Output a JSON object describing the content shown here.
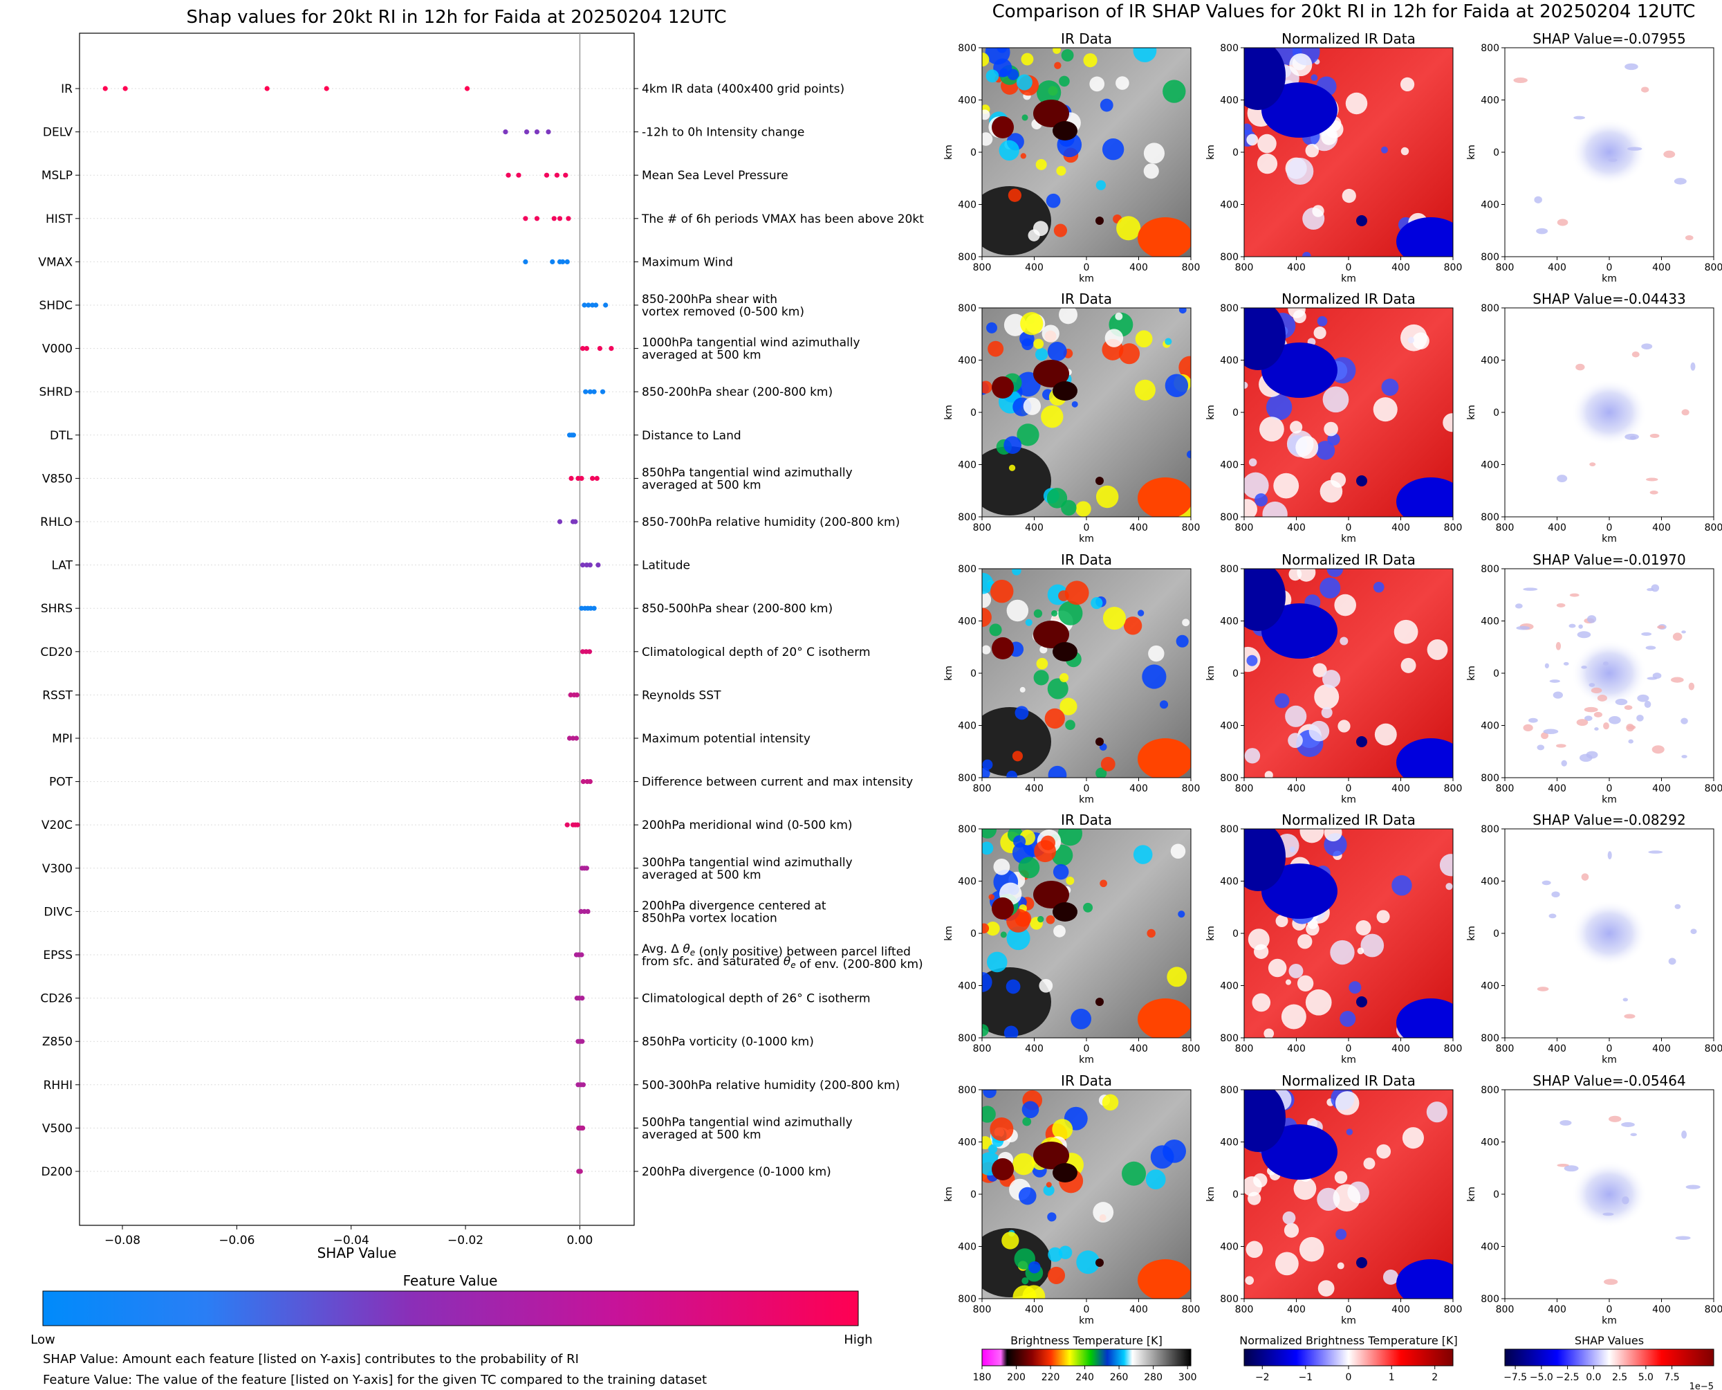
{
  "colors": {
    "low": "#008bfb",
    "mid": "#8a2fb8",
    "high": "#ff0052",
    "zero_line": "#999999",
    "grid": "#dddddd"
  },
  "chart_data": [
    {
      "type": "scatter",
      "subtype": "shap-beeswarm",
      "title": "Shap values for 20kt RI in 12h for Faida at 20250204 12UTC",
      "xlabel": "SHAP Value",
      "xlim": [
        -0.0875,
        0.0095
      ],
      "xticks": [
        -0.08,
        -0.06,
        -0.04,
        -0.02,
        0.0
      ],
      "xtick_labels": [
        "−0.08",
        "−0.06",
        "−0.04",
        "−0.02",
        "0.00"
      ],
      "colorbar": {
        "title": "Feature Value",
        "low_label": "Low",
        "high_label": "High"
      },
      "notes": [
        "SHAP Value: Amount each feature [listed on Y-axis] contributes to the probability of RI",
        "Feature Value: The value of the feature [listed on Y-axis] for the given TC compared to the training dataset"
      ],
      "features": [
        {
          "name": "IR",
          "desc": [
            "4km IR data (400x400 grid points)"
          ],
          "values": [
            -0.083,
            -0.0795,
            -0.0547,
            -0.0443,
            -0.0197
          ],
          "level": 1.0
        },
        {
          "name": "DELV",
          "desc": [
            "-12h to 0h Intensity change"
          ],
          "values": [
            -0.013,
            -0.0093,
            -0.0075,
            -0.0055
          ],
          "level": 0.45
        },
        {
          "name": "MSLP",
          "desc": [
            "Mean Sea Level Pressure"
          ],
          "values": [
            -0.0125,
            -0.0107,
            -0.0058,
            -0.004,
            -0.0025
          ],
          "level": 0.95
        },
        {
          "name": "HIST",
          "desc": [
            "The # of 6h periods VMAX has been above 20kt"
          ],
          "values": [
            -0.0095,
            -0.0075,
            -0.0045,
            -0.0035,
            -0.002
          ],
          "level": 0.95
        },
        {
          "name": "VMAX",
          "desc": [
            "Maximum Wind"
          ],
          "values": [
            -0.0095,
            -0.0048,
            -0.0035,
            -0.003,
            -0.0022
          ],
          "level": 0.05
        },
        {
          "name": "SHDC",
          "desc": [
            "850-200hPa shear with",
            "vortex removed (0-500 km)"
          ],
          "values": [
            0.0008,
            0.0015,
            0.0022,
            0.0028,
            0.0045
          ],
          "level": 0.05
        },
        {
          "name": "V000",
          "desc": [
            "1000hPa tangential wind azimuthally",
            "averaged at 500 km"
          ],
          "values": [
            0.0005,
            0.0012,
            0.0035,
            0.0055
          ],
          "level": 0.95
        },
        {
          "name": "SHRD",
          "desc": [
            "850-200hPa shear (200-800 km)"
          ],
          "values": [
            0.001,
            0.0018,
            0.0025,
            0.004
          ],
          "level": 0.05
        },
        {
          "name": "DTL",
          "desc": [
            "Distance to Land"
          ],
          "values": [
            -0.0018,
            -0.0014,
            -0.0011
          ],
          "level": 0.05
        },
        {
          "name": "V850",
          "desc": [
            "850hPa tangential wind azimuthally",
            "averaged at 500 km"
          ],
          "values": [
            -0.0015,
            -0.0003,
            0.0003,
            0.0022,
            0.003
          ],
          "level": 0.95
        },
        {
          "name": "RHLO",
          "desc": [
            "850-700hPa relative humidity (200-800 km)"
          ],
          "values": [
            -0.0035,
            -0.0012,
            -0.0008
          ],
          "level": 0.45
        },
        {
          "name": "LAT",
          "desc": [
            "Latitude"
          ],
          "values": [
            0.0005,
            0.0012,
            0.0018,
            0.0032
          ],
          "level": 0.45
        },
        {
          "name": "SHRS",
          "desc": [
            "850-500hPa shear (200-800 km)"
          ],
          "values": [
            0.0003,
            0.0009,
            0.0014,
            0.0019,
            0.0025
          ],
          "level": 0.05
        },
        {
          "name": "CD20",
          "desc": [
            "Climatological depth of 20° C isotherm"
          ],
          "values": [
            0.0005,
            0.0011,
            0.0017
          ],
          "level": 0.85
        },
        {
          "name": "RSST",
          "desc": [
            "Reynolds SST"
          ],
          "values": [
            -0.0016,
            -0.001,
            -0.0005
          ],
          "level": 0.75
        },
        {
          "name": "MPI",
          "desc": [
            "Maximum potential intensity"
          ],
          "values": [
            -0.0018,
            -0.0012,
            -0.0006
          ],
          "level": 0.7
        },
        {
          "name": "POT",
          "desc": [
            "Difference between current and max intensity"
          ],
          "values": [
            0.0006,
            0.0013,
            0.0018
          ],
          "level": 0.75
        },
        {
          "name": "V20C",
          "desc": [
            "200hPa meridional wind (0-500 km)"
          ],
          "values": [
            -0.0022,
            -0.0012,
            -0.0008,
            -0.0004
          ],
          "level": 0.9
        },
        {
          "name": "V300",
          "desc": [
            "300hPa tangential wind azimuthally",
            "averaged at 500 km"
          ],
          "values": [
            0.0004,
            0.0008,
            0.0012
          ],
          "level": 0.65
        },
        {
          "name": "DIVC",
          "desc": [
            "200hPa divergence centered at",
            "850hPa vortex location"
          ],
          "values": [
            0.0002,
            0.0008,
            0.0014
          ],
          "level": 0.65
        },
        {
          "name": "EPSS",
          "desc": [
            "Avg. Δ θe (only positive) between parcel lifted",
            "from sfc. and saturated θe of env. (200-800 km)"
          ],
          "values": [
            -0.0006,
            -0.0002,
            0.0003
          ],
          "level": 0.65
        },
        {
          "name": "CD26",
          "desc": [
            "Climatological depth of 26° C isotherm"
          ],
          "values": [
            -0.0005,
            -0.0001,
            0.0004
          ],
          "level": 0.65
        },
        {
          "name": "Z850",
          "desc": [
            "850hPa vorticity (0-1000 km)"
          ],
          "values": [
            -0.0003,
            0.0001,
            0.0004
          ],
          "level": 0.65
        },
        {
          "name": "RHHI",
          "desc": [
            "500-300hPa relative humidity (200-800 km)"
          ],
          "values": [
            -0.0003,
            0.0002,
            0.0006
          ],
          "level": 0.65
        },
        {
          "name": "V500",
          "desc": [
            "500hPa tangential wind azimuthally",
            "averaged at 500 km"
          ],
          "values": [
            -0.0002,
            0.0002,
            0.0005
          ],
          "level": 0.7
        },
        {
          "name": "D200",
          "desc": [
            "200hPa divergence (0-1000 km)"
          ],
          "values": [
            -0.0002,
            0.0001
          ],
          "level": 0.7
        }
      ]
    },
    {
      "type": "heatmap",
      "title": "Comparison of IR SHAP Values for 20kt RI in 12h for Faida at 20250204 12UTC",
      "axis_label": "km",
      "axis_ticks": [
        "800",
        "400",
        "0",
        "400",
        "800"
      ],
      "panel_titles": {
        "ir": "IR Data",
        "norm": "Normalized IR Data",
        "shap_prefix": "SHAP Value="
      },
      "shap_values": [
        "-0.07955",
        "-0.04433",
        "-0.01970",
        "-0.08292",
        "-0.05464"
      ],
      "colorbars": [
        {
          "label": "Brightness Temperature [K]",
          "ticks": [
            "180",
            "200",
            "220",
            "240",
            "260",
            "280",
            "300"
          ]
        },
        {
          "label": "Normalized Brightness Temperature [K]",
          "ticks": [
            "−2",
            "−1",
            "0",
            "1",
            "2"
          ]
        },
        {
          "label": "SHAP Values",
          "ticks": [
            "−7.5",
            "−5.0",
            "−2.5",
            "0.0",
            "2.5",
            "5.0",
            "7.5"
          ],
          "offset": "1e−5"
        }
      ]
    }
  ]
}
